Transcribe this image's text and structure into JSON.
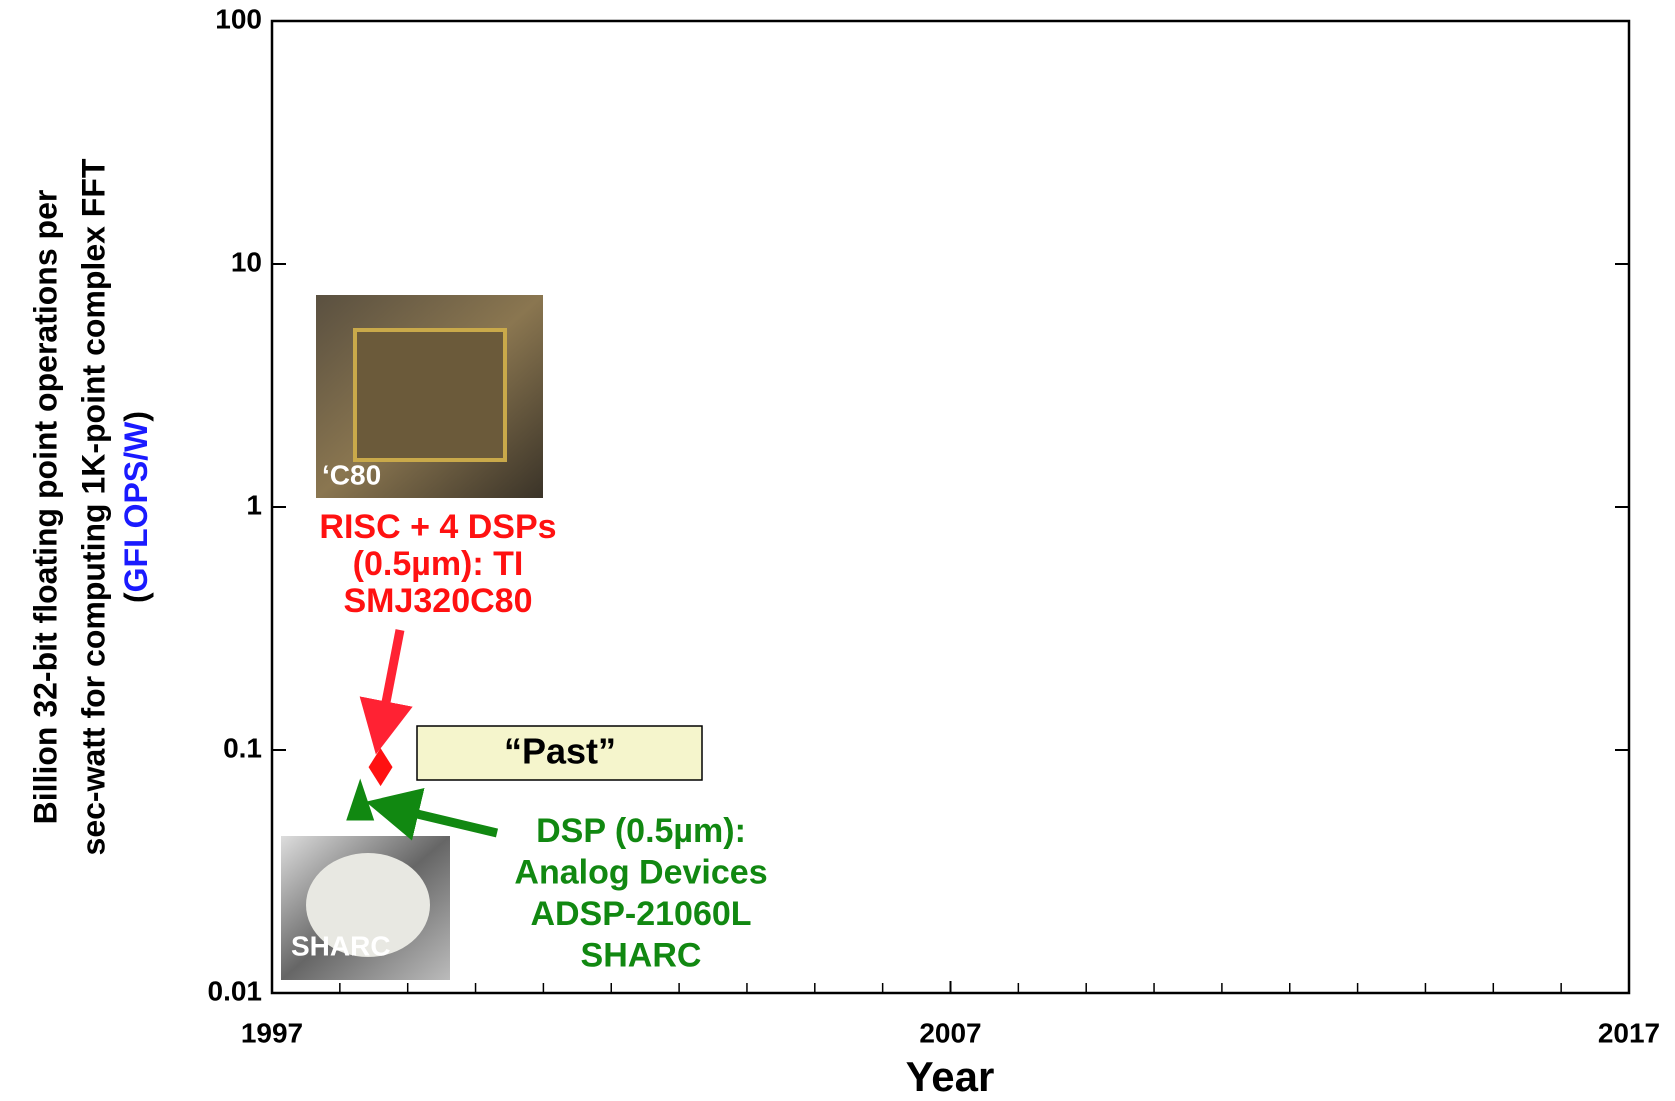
{
  "chart_data": {
    "type": "scatter",
    "xlabel": "Year",
    "ylabel_lines": [
      "Billion 32-bit floating point operations per",
      "sec-watt for computing 1K-point complex FFT"
    ],
    "ylabel_unit_parts": [
      "(",
      "GFLOPS/W",
      ")"
    ],
    "ylabel_unit_color": "#1a1aff",
    "xlim": [
      1997,
      2017
    ],
    "xticks": [
      1997,
      2007,
      2017
    ],
    "xminorticks": [
      1998,
      1999,
      2000,
      2001,
      2002,
      2003,
      2004,
      2005,
      2006,
      2008,
      2009,
      2010,
      2011,
      2012,
      2013,
      2014,
      2015,
      2016
    ],
    "ylim": [
      0.01,
      100
    ],
    "yticks": [
      0.01,
      0.1,
      1,
      10,
      100
    ],
    "log_y": true,
    "grid": false,
    "points": [
      {
        "x": 1998.3,
        "y": 0.062,
        "marker": "triangle",
        "color": "#118811",
        "label_lines": [
          "DSP (0.5µm):",
          "Analog Devices",
          "ADSP-21060L",
          "SHARC"
        ]
      },
      {
        "x": 1998.6,
        "y": 0.085,
        "marker": "diamond",
        "color": "#ff1111",
        "label_lines": [
          "RISC + 4 DSPs",
          "(0.5µm):  TI",
          "SMJ320C80"
        ]
      }
    ],
    "annotation_box": {
      "text": "“Past”",
      "color": "#f5f5cc"
    },
    "images": [
      {
        "label": "‘C80"
      },
      {
        "label": "SHARC"
      }
    ]
  }
}
